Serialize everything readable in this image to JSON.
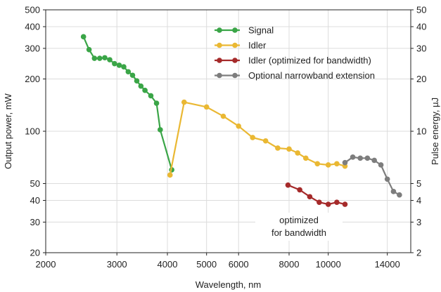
{
  "chart_data": {
    "type": "line",
    "x_scale": "log",
    "y_scale": "log",
    "xlim": [
      2000,
      16000
    ],
    "ylim": [
      20,
      500
    ],
    "y2lim": [
      2,
      50
    ],
    "xlabel": "Wavelength, nm",
    "ylabel": "Output power, mW",
    "y2label": "Pulse energy, µJ",
    "x_ticks": [
      2000,
      3000,
      4000,
      5000,
      6000,
      8000,
      10000,
      14000
    ],
    "y_ticks": [
      20,
      30,
      40,
      50,
      100,
      200,
      300,
      400,
      500
    ],
    "y2_ticks": [
      2,
      3,
      4,
      5,
      10,
      20,
      30,
      40,
      50
    ],
    "grid": true,
    "legend_position": "top-right",
    "annotation": "optimized\nfor bandwidth",
    "series": [
      {
        "name": "Signal",
        "color": "#3aa547",
        "points": [
          [
            2480,
            350
          ],
          [
            2560,
            295
          ],
          [
            2640,
            263
          ],
          [
            2720,
            263
          ],
          [
            2800,
            265
          ],
          [
            2880,
            258
          ],
          [
            2960,
            245
          ],
          [
            3040,
            240
          ],
          [
            3120,
            235
          ],
          [
            3200,
            220
          ],
          [
            3280,
            210
          ],
          [
            3360,
            195
          ],
          [
            3440,
            182
          ],
          [
            3520,
            172
          ],
          [
            3640,
            160
          ],
          [
            3760,
            145
          ],
          [
            3840,
            102
          ],
          [
            4100,
            60
          ]
        ]
      },
      {
        "name": "Idler",
        "color": "#eab833",
        "points": [
          [
            4060,
            56
          ],
          [
            4400,
            147
          ],
          [
            5000,
            138
          ],
          [
            5500,
            122
          ],
          [
            6000,
            107
          ],
          [
            6500,
            92
          ],
          [
            7000,
            88
          ],
          [
            7500,
            80
          ],
          [
            8000,
            79
          ],
          [
            8400,
            75
          ],
          [
            8800,
            70
          ],
          [
            9400,
            65
          ],
          [
            10000,
            64
          ],
          [
            10500,
            65
          ],
          [
            11000,
            63
          ]
        ]
      },
      {
        "name": "Idler (optimized for bandwidth)",
        "color": "#a52a2a",
        "points": [
          [
            7950,
            49
          ],
          [
            8500,
            46
          ],
          [
            9000,
            42
          ],
          [
            9500,
            39
          ],
          [
            10000,
            38
          ],
          [
            10500,
            39
          ],
          [
            11000,
            38
          ]
        ]
      },
      {
        "name": "Optional narrowband extension",
        "color": "#7d7d7d",
        "points": [
          [
            11000,
            66
          ],
          [
            11500,
            71
          ],
          [
            12000,
            70
          ],
          [
            12500,
            70
          ],
          [
            13000,
            68
          ],
          [
            13500,
            64
          ],
          [
            14000,
            53
          ],
          [
            14500,
            45
          ],
          [
            15000,
            43
          ]
        ]
      }
    ]
  }
}
